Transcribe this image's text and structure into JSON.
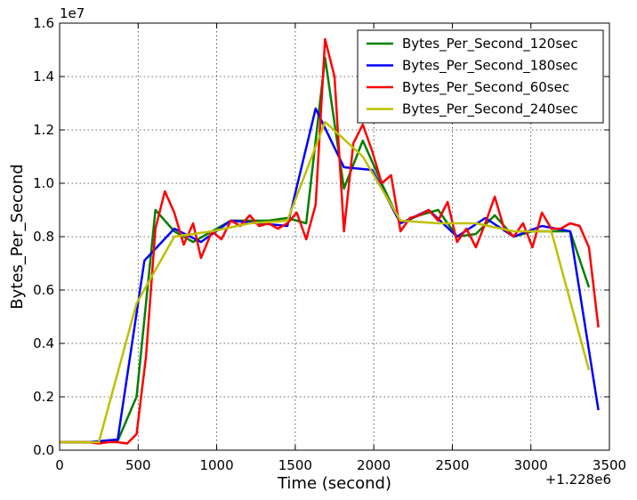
{
  "chart_data": {
    "type": "line",
    "xlabel": "Time (second)",
    "ylabel": "Bytes_Per_Second",
    "x_offset_label": "+1.228e6",
    "y_scale_label": "1e7",
    "xlim": [
      0,
      3500
    ],
    "ylim": [
      0,
      1.6
    ],
    "xticks": [
      0,
      500,
      1000,
      1500,
      2000,
      2500,
      3000,
      3500
    ],
    "yticks": [
      0.0,
      0.2,
      0.4,
      0.6,
      0.8,
      1.0,
      1.2,
      1.4,
      1.6
    ],
    "x_tick_labels": [
      "0",
      "500",
      "1000",
      "1500",
      "2000",
      "2500",
      "3000",
      "3500"
    ],
    "y_tick_labels": [
      "0.0",
      "0.2",
      "0.4",
      "0.6",
      "0.8",
      "1.0",
      "1.2",
      "1.4",
      "1.6"
    ],
    "grid": true,
    "legend_position": "top-right",
    "series": [
      {
        "name": "Bytes_Per_Second_120sec",
        "color": "#008000",
        "points": [
          [
            0,
            0.03
          ],
          [
            120,
            0.03
          ],
          [
            250,
            0.03
          ],
          [
            370,
            0.035
          ],
          [
            490,
            0.2
          ],
          [
            610,
            0.9
          ],
          [
            730,
            0.82
          ],
          [
            850,
            0.78
          ],
          [
            970,
            0.82
          ],
          [
            1090,
            0.86
          ],
          [
            1210,
            0.86
          ],
          [
            1330,
            0.86
          ],
          [
            1450,
            0.87
          ],
          [
            1570,
            0.85
          ],
          [
            1690,
            1.47
          ],
          [
            1810,
            0.98
          ],
          [
            1930,
            1.16
          ],
          [
            2050,
            1.0
          ],
          [
            2170,
            0.85
          ],
          [
            2290,
            0.88
          ],
          [
            2410,
            0.9
          ],
          [
            2530,
            0.8
          ],
          [
            2650,
            0.81
          ],
          [
            2770,
            0.88
          ],
          [
            2890,
            0.8
          ],
          [
            3010,
            0.82
          ],
          [
            3130,
            0.82
          ],
          [
            3250,
            0.82
          ],
          [
            3370,
            0.61
          ]
        ]
      },
      {
        "name": "Bytes_Per_Second_180sec",
        "color": "#0000ff",
        "points": [
          [
            0,
            0.03
          ],
          [
            180,
            0.03
          ],
          [
            370,
            0.04
          ],
          [
            540,
            0.71
          ],
          [
            730,
            0.83
          ],
          [
            900,
            0.78
          ],
          [
            1090,
            0.86
          ],
          [
            1270,
            0.85
          ],
          [
            1450,
            0.84
          ],
          [
            1630,
            1.28
          ],
          [
            1810,
            1.06
          ],
          [
            1990,
            1.05
          ],
          [
            2170,
            0.85
          ],
          [
            2350,
            0.9
          ],
          [
            2530,
            0.8
          ],
          [
            2710,
            0.87
          ],
          [
            2890,
            0.8
          ],
          [
            3070,
            0.84
          ],
          [
            3250,
            0.82
          ],
          [
            3430,
            0.15
          ]
        ]
      },
      {
        "name": "Bytes_Per_Second_60sec",
        "color": "#ff0000",
        "points": [
          [
            0,
            0.03
          ],
          [
            60,
            0.03
          ],
          [
            120,
            0.03
          ],
          [
            180,
            0.03
          ],
          [
            250,
            0.025
          ],
          [
            310,
            0.03
          ],
          [
            370,
            0.03
          ],
          [
            430,
            0.025
          ],
          [
            490,
            0.06
          ],
          [
            550,
            0.35
          ],
          [
            610,
            0.83
          ],
          [
            670,
            0.97
          ],
          [
            730,
            0.89
          ],
          [
            790,
            0.77
          ],
          [
            850,
            0.85
          ],
          [
            900,
            0.72
          ],
          [
            970,
            0.82
          ],
          [
            1030,
            0.79
          ],
          [
            1090,
            0.86
          ],
          [
            1150,
            0.84
          ],
          [
            1210,
            0.88
          ],
          [
            1270,
            0.84
          ],
          [
            1330,
            0.85
          ],
          [
            1390,
            0.83
          ],
          [
            1450,
            0.85
          ],
          [
            1510,
            0.89
          ],
          [
            1570,
            0.79
          ],
          [
            1630,
            0.92
          ],
          [
            1690,
            1.54
          ],
          [
            1750,
            1.4
          ],
          [
            1810,
            0.82
          ],
          [
            1870,
            1.15
          ],
          [
            1930,
            1.22
          ],
          [
            1990,
            1.12
          ],
          [
            2050,
            1.0
          ],
          [
            2110,
            1.03
          ],
          [
            2170,
            0.82
          ],
          [
            2230,
            0.87
          ],
          [
            2290,
            0.88
          ],
          [
            2350,
            0.9
          ],
          [
            2410,
            0.86
          ],
          [
            2470,
            0.93
          ],
          [
            2530,
            0.78
          ],
          [
            2590,
            0.83
          ],
          [
            2650,
            0.76
          ],
          [
            2710,
            0.85
          ],
          [
            2770,
            0.95
          ],
          [
            2830,
            0.83
          ],
          [
            2890,
            0.8
          ],
          [
            2950,
            0.85
          ],
          [
            3010,
            0.76
          ],
          [
            3070,
            0.89
          ],
          [
            3130,
            0.83
          ],
          [
            3190,
            0.83
          ],
          [
            3250,
            0.85
          ],
          [
            3310,
            0.84
          ],
          [
            3370,
            0.76
          ],
          [
            3430,
            0.46
          ]
        ]
      },
      {
        "name": "Bytes_Per_Second_240sec",
        "color": "#bfbf00",
        "points": [
          [
            0,
            0.03
          ],
          [
            250,
            0.03
          ],
          [
            490,
            0.55
          ],
          [
            730,
            0.8
          ],
          [
            970,
            0.82
          ],
          [
            1210,
            0.85
          ],
          [
            1450,
            0.86
          ],
          [
            1690,
            1.23
          ],
          [
            1930,
            1.1
          ],
          [
            2170,
            0.86
          ],
          [
            2410,
            0.85
          ],
          [
            2650,
            0.85
          ],
          [
            2890,
            0.82
          ],
          [
            3130,
            0.82
          ],
          [
            3370,
            0.3
          ]
        ]
      }
    ]
  }
}
